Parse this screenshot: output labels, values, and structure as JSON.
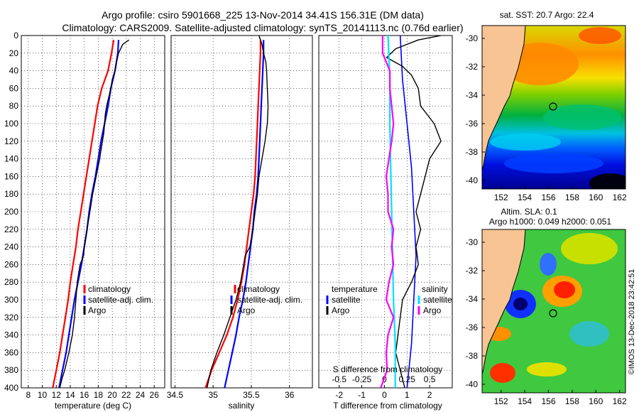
{
  "title": {
    "line1": "Argo profile: csiro 5901668_225 13-Nov-2014 34.41S 156.31E (DM data)",
    "line2": "Climatology: CARS2009. Satellite-adjusted climatology: synTS_20141113.nc (0.76d earlier)"
  },
  "colors": {
    "climatology": "#ff0000",
    "satellite": "#0000ff",
    "argo": "#000000",
    "salinity_diff": "#ff00ff",
    "salinity_sat": "#00e0ff",
    "land": "#f8c494"
  },
  "chart_data": [
    {
      "type": "line",
      "title": "",
      "xlabel": "temperature (deg C)",
      "ylabel": "",
      "xlim": [
        7,
        27.5
      ],
      "ylim": [
        400,
        0
      ],
      "x_ticks": [
        "8",
        "10",
        "12",
        "14",
        "16",
        "18",
        "20",
        "22",
        "24",
        "26"
      ],
      "y_ticks": [
        "0",
        "20",
        "40",
        "60",
        "80",
        "100",
        "120",
        "140",
        "160",
        "180",
        "200",
        "220",
        "240",
        "260",
        "280",
        "300",
        "320",
        "340",
        "360",
        "380",
        "400"
      ],
      "legend": [
        "climatology",
        "satellite-adj. clim.",
        "Argo"
      ],
      "series": [
        {
          "name": "climatology",
          "depth": [
            5,
            20,
            40,
            60,
            80,
            100,
            120,
            140,
            160,
            180,
            200,
            220,
            240,
            260,
            280,
            300,
            320,
            340,
            360,
            380,
            400
          ],
          "values": [
            20.2,
            19.9,
            19.4,
            18.5,
            17.9,
            17.5,
            17.1,
            16.7,
            16.3,
            15.9,
            15.5,
            15.1,
            14.8,
            14.4,
            14.0,
            13.7,
            13.3,
            12.9,
            12.5,
            12.0,
            11.5
          ]
        },
        {
          "name": "satellite-adj. clim.",
          "depth": [
            5,
            20,
            40,
            60,
            80,
            100,
            120,
            140,
            160,
            180,
            200,
            220,
            240,
            260,
            280,
            300,
            320,
            340,
            360,
            380,
            400
          ],
          "values": [
            20.9,
            20.8,
            20.4,
            19.8,
            19.4,
            18.9,
            18.4,
            18.0,
            17.6,
            17.1,
            16.7,
            16.4,
            16.0,
            15.6,
            15.1,
            14.6,
            14.2,
            13.8,
            13.4,
            12.9,
            12.4
          ]
        },
        {
          "name": "Argo",
          "depth": [
            5,
            10,
            20,
            30,
            40,
            50,
            60,
            70,
            80,
            90,
            100,
            110,
            120,
            130,
            140,
            160,
            180,
            200,
            220,
            240,
            250,
            260,
            280,
            300,
            320,
            340,
            360,
            380,
            390,
            400
          ],
          "values": [
            22.4,
            21.5,
            20.9,
            20.6,
            20.4,
            20.0,
            19.8,
            19.5,
            19.2,
            19.0,
            18.9,
            18.8,
            18.6,
            18.4,
            18.2,
            17.7,
            17.2,
            16.8,
            16.4,
            16.0,
            15.9,
            15.4,
            15.0,
            14.8,
            14.6,
            14.3,
            13.8,
            13.2,
            12.8,
            12.5
          ]
        }
      ]
    },
    {
      "type": "line",
      "xlabel": "salinity",
      "ylabel": "",
      "xlim": [
        34.45,
        36.3
      ],
      "ylim": [
        400,
        0
      ],
      "x_ticks": [
        "34.5",
        "35",
        "35.5",
        "36"
      ],
      "legend": [
        "climatology",
        "satellite-adj. clim.",
        "Argo"
      ],
      "series": [
        {
          "name": "climatology",
          "depth": [
            5,
            20,
            40,
            60,
            80,
            100,
            120,
            140,
            160,
            180,
            200,
            220,
            240,
            260,
            280,
            300,
            320,
            340,
            360,
            380,
            400
          ],
          "values": [
            35.62,
            35.62,
            35.61,
            35.6,
            35.59,
            35.58,
            35.57,
            35.56,
            35.55,
            35.53,
            35.5,
            35.47,
            35.44,
            35.41,
            35.37,
            35.32,
            35.26,
            35.18,
            35.08,
            34.98,
            34.9
          ]
        },
        {
          "name": "satellite-adj. clim.",
          "depth": [
            5,
            20,
            40,
            60,
            80,
            100,
            120,
            140,
            160,
            180,
            200,
            220,
            240,
            260,
            280,
            300,
            320,
            340,
            360,
            380,
            400
          ],
          "values": [
            35.66,
            35.66,
            35.65,
            35.64,
            35.63,
            35.62,
            35.61,
            35.6,
            35.59,
            35.57,
            35.54,
            35.52,
            35.49,
            35.46,
            35.43,
            35.39,
            35.34,
            35.3,
            35.25,
            35.2,
            35.15
          ]
        },
        {
          "name": "Argo",
          "depth": [
            0,
            10,
            20,
            30,
            40,
            60,
            80,
            100,
            120,
            140,
            160,
            180,
            200,
            220,
            240,
            250,
            260,
            280,
            300,
            320,
            340,
            360,
            380,
            400
          ],
          "values": [
            35.6,
            35.64,
            35.66,
            35.69,
            35.7,
            35.71,
            35.72,
            35.71,
            35.68,
            35.64,
            35.6,
            35.58,
            35.55,
            35.52,
            35.48,
            35.42,
            35.4,
            35.36,
            35.3,
            35.22,
            35.14,
            35.05,
            34.97,
            34.92
          ]
        }
      ]
    },
    {
      "type": "line",
      "xlabel": "T difference from climatology",
      "xlabel_top": "S difference from climatology",
      "xlim": [
        -2.9,
        3.0
      ],
      "ylim": [
        400,
        0
      ],
      "x_ticks": [
        "-2",
        "-1",
        "0",
        "1",
        "2"
      ],
      "x_ticks_top": [
        "-0.5",
        "-0.25",
        "0",
        "0.25",
        "0.5"
      ],
      "legend_temperature": {
        "title": "temperature",
        "items": [
          "satellite",
          "Argo"
        ]
      },
      "legend_salinity": {
        "title": "salinity",
        "items": [
          "satellite",
          "Argo"
        ]
      },
      "series": [
        {
          "name": "T satellite",
          "depth": [
            0,
            50,
            100,
            150,
            200,
            250,
            300,
            350,
            400
          ],
          "values": [
            0.7,
            0.8,
            1.0,
            1.2,
            1.3,
            1.4,
            1.3,
            1.2,
            1.0
          ]
        },
        {
          "name": "T Argo",
          "depth": [
            0,
            5,
            15,
            25,
            35,
            45,
            60,
            80,
            100,
            120,
            140,
            160,
            180,
            200,
            220,
            240,
            260,
            280,
            300,
            320,
            340,
            360,
            380,
            400
          ],
          "values": [
            2.5,
            1.5,
            0.5,
            0.1,
            0.8,
            1.2,
            1.5,
            1.6,
            2.2,
            2.5,
            2.0,
            1.8,
            1.6,
            1.4,
            1.6,
            1.4,
            1.5,
            1.2,
            0.8,
            0.7,
            0.6,
            0.5,
            0.7,
            0.9
          ]
        },
        {
          "name": "S satellite",
          "depth": [
            0,
            50,
            100,
            150,
            200,
            250,
            300,
            350,
            400
          ],
          "values": [
            0.04,
            0.06,
            0.06,
            0.07,
            0.08,
            0.09,
            0.1,
            0.12,
            0.12
          ]
        },
        {
          "name": "S Argo",
          "depth": [
            0,
            20,
            40,
            60,
            80,
            100,
            120,
            140,
            160,
            180,
            200,
            220,
            240,
            260,
            280,
            300,
            320,
            340,
            360,
            380,
            400
          ],
          "values": [
            -0.02,
            -0.02,
            0.06,
            0.06,
            0.08,
            0.1,
            0.08,
            0.05,
            0.02,
            0.04,
            0.04,
            0.1,
            0.08,
            0.1,
            0.05,
            0.02,
            0.1,
            0.04,
            0.02,
            0.03,
            -0.04
          ]
        }
      ]
    }
  ],
  "maps": {
    "sst": {
      "title": "sat. SST: 20.7 Argo: 22.4",
      "lon_ticks": [
        "152",
        "154",
        "156",
        "158",
        "160",
        "162"
      ],
      "lat_ticks": [
        "-30",
        "-32",
        "-34",
        "-36",
        "-38",
        "-40"
      ]
    },
    "sla": {
      "title_line1": "Altim. SLA: 0.1",
      "title_line2": "Argo h1000: 0.049 h2000: 0.051",
      "lon_ticks": [
        "152",
        "154",
        "156",
        "158",
        "160",
        "162"
      ],
      "lat_ticks": [
        "-30",
        "-32",
        "-34",
        "-36",
        "-38",
        "-40"
      ]
    },
    "argo_position": {
      "lon": 156.31,
      "lat": -34.41
    }
  },
  "footer": "©IMOS 13-Dec-2018 23:42:51"
}
